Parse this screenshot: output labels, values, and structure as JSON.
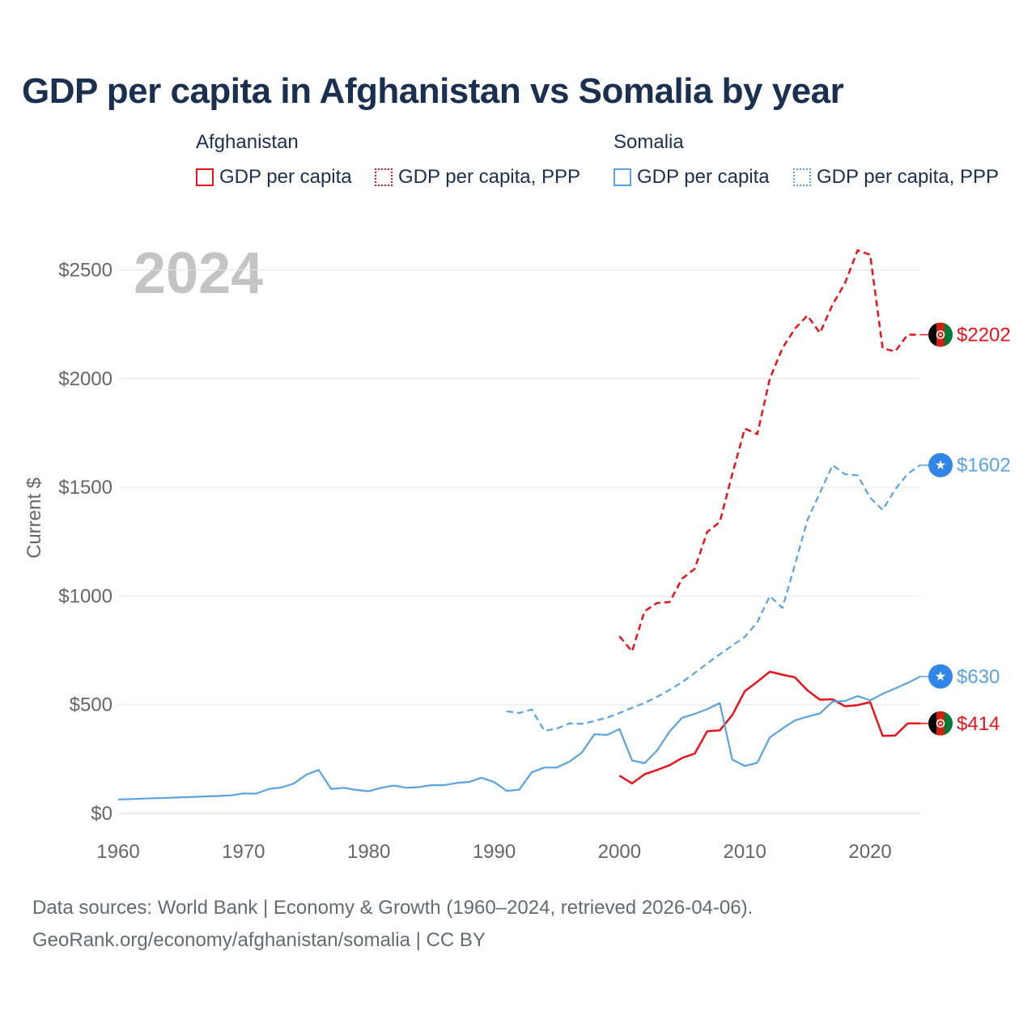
{
  "colors": {
    "afghanistan": "#e8141b",
    "somalia": "#5aa3e2",
    "somalia_marker": "#2f86e8",
    "title": "#1b3050",
    "axis_text": "#666666",
    "grid": "#e6e6e6",
    "year_watermark": "#c4c4c4"
  },
  "legend": {
    "afghanistan": {
      "title": "Afghanistan",
      "solid": "GDP per capita",
      "dotted": "GDP per capita, PPP"
    },
    "somalia": {
      "title": "Somalia",
      "solid": "GDP per capita",
      "dotted": "GDP per capita, PPP"
    }
  },
  "chart_data": {
    "type": "line",
    "title": "GDP per capita in Afghanistan vs Somalia by year",
    "year_label": "2024",
    "xlabel": "",
    "ylabel": "Current $",
    "xlim": [
      1960,
      2024
    ],
    "ylim": [
      0,
      2700
    ],
    "grid": true,
    "x_ticks": [
      1960,
      1970,
      1980,
      1990,
      2000,
      2010,
      2020
    ],
    "y_ticks": [
      {
        "value": 0,
        "label": "$0"
      },
      {
        "value": 500,
        "label": "$500"
      },
      {
        "value": 1000,
        "label": "$1000"
      },
      {
        "value": 1500,
        "label": "$1500"
      },
      {
        "value": 2000,
        "label": "$2000"
      },
      {
        "value": 2500,
        "label": "$2500"
      }
    ],
    "series": [
      {
        "name": "Afghanistan GDP per capita, PPP",
        "country": "afghanistan",
        "style": "dashed",
        "end_label": "$2202",
        "x": [
          2000,
          2001,
          2002,
          2003,
          2004,
          2005,
          2006,
          2007,
          2008,
          2009,
          2010,
          2011,
          2012,
          2013,
          2014,
          2015,
          2016,
          2017,
          2018,
          2019,
          2020,
          2021,
          2022,
          2023,
          2024
        ],
        "values": [
          815,
          745,
          930,
          968,
          972,
          1080,
          1125,
          1295,
          1340,
          1560,
          1770,
          1745,
          2000,
          2140,
          2230,
          2290,
          2210,
          2340,
          2440,
          2590,
          2570,
          2140,
          2125,
          2202,
          2202
        ]
      },
      {
        "name": "Afghanistan GDP per capita",
        "country": "afghanistan",
        "style": "solid",
        "end_label": "$414",
        "x": [
          2000,
          2001,
          2002,
          2003,
          2004,
          2005,
          2006,
          2007,
          2008,
          2009,
          2010,
          2011,
          2012,
          2013,
          2014,
          2015,
          2016,
          2017,
          2018,
          2019,
          2020,
          2021,
          2022,
          2023,
          2024
        ],
        "values": [
          174,
          138,
          180,
          200,
          222,
          255,
          275,
          378,
          382,
          452,
          562,
          606,
          652,
          638,
          626,
          566,
          523,
          525,
          493,
          498,
          512,
          357,
          358,
          414,
          414
        ]
      },
      {
        "name": "Somalia GDP per capita, PPP",
        "country": "somalia",
        "style": "dashed",
        "end_label": "$1602",
        "x": [
          1991,
          1992,
          1993,
          1994,
          1995,
          1996,
          1997,
          1998,
          1999,
          2000,
          2001,
          2002,
          2003,
          2004,
          2005,
          2006,
          2007,
          2008,
          2009,
          2010,
          2011,
          2012,
          2013,
          2014,
          2015,
          2016,
          2017,
          2018,
          2019,
          2020,
          2021,
          2022,
          2023,
          2024
        ],
        "values": [
          470,
          462,
          478,
          380,
          390,
          414,
          412,
          425,
          440,
          462,
          486,
          508,
          536,
          568,
          604,
          646,
          690,
          732,
          772,
          812,
          880,
          1000,
          945,
          1145,
          1350,
          1475,
          1602,
          1560,
          1555,
          1452,
          1396,
          1490,
          1562,
          1602
        ]
      },
      {
        "name": "Somalia GDP per capita",
        "country": "somalia",
        "style": "solid",
        "end_label": "$630",
        "x": [
          1960,
          1961,
          1962,
          1963,
          1964,
          1965,
          1966,
          1967,
          1968,
          1969,
          1970,
          1971,
          1972,
          1973,
          1974,
          1975,
          1976,
          1977,
          1978,
          1979,
          1980,
          1981,
          1982,
          1983,
          1984,
          1985,
          1986,
          1987,
          1988,
          1989,
          1990,
          1991,
          1992,
          1993,
          1994,
          1995,
          1996,
          1997,
          1998,
          1999,
          2000,
          2001,
          2002,
          2003,
          2004,
          2005,
          2006,
          2007,
          2008,
          2009,
          2010,
          2011,
          2012,
          2013,
          2014,
          2015,
          2016,
          2017,
          2018,
          2019,
          2020,
          2021,
          2022,
          2023,
          2024
        ],
        "values": [
          64,
          66,
          68,
          70,
          72,
          74,
          76,
          78,
          80,
          83,
          92,
          91,
          112,
          119,
          137,
          178,
          200,
          112,
          118,
          108,
          102,
          118,
          128,
          118,
          121,
          130,
          130,
          140,
          145,
          164,
          144,
          104,
          109,
          189,
          211,
          211,
          238,
          280,
          364,
          361,
          388,
          244,
          231,
          289,
          377,
          440,
          458,
          480,
          508,
          248,
          218,
          233,
          350,
          390,
          428,
          445,
          460,
          514,
          517,
          540,
          520,
          550,
          575,
          600,
          630
        ]
      }
    ]
  },
  "footer": {
    "source": "Data sources: World Bank | Economy & Growth (1960–2024, retrieved 2026-04-06).",
    "attribution": "GeoRank.org/economy/afghanistan/somalia | CC BY"
  }
}
